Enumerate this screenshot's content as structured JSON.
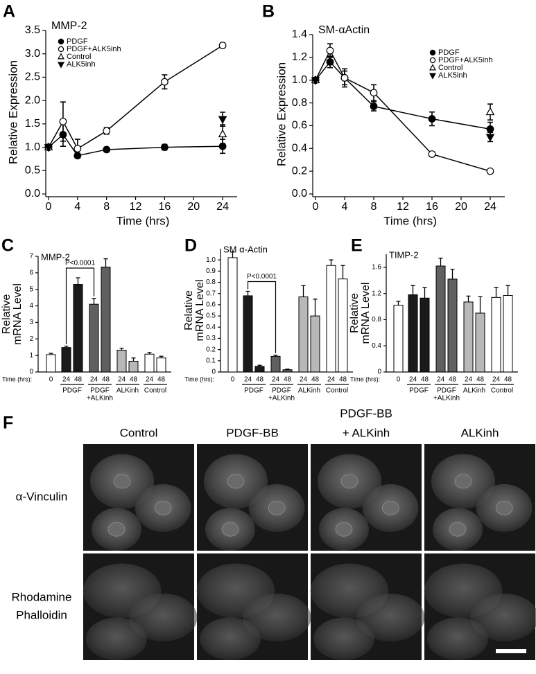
{
  "chart_data": [
    {
      "panel": "A",
      "type": "line",
      "title": "MMP-2",
      "x": [
        0,
        2,
        4,
        8,
        16,
        24
      ],
      "xlim": [
        0,
        26
      ],
      "xticks": [
        0,
        4,
        8,
        12,
        16,
        20,
        24
      ],
      "ylim": [
        0,
        3.5
      ],
      "yticks": [
        {
          "value": 0,
          "label": "0.0"
        },
        0.5,
        {
          "value": 1,
          "label": "1.0"
        },
        1.5,
        {
          "value": 2,
          "label": "2.0"
        },
        2.5,
        {
          "value": 3,
          "label": "3.0"
        },
        3.5
      ],
      "x_label": "Time (hrs)",
      "y_label": "Relative Expression",
      "legend": "upper left",
      "series": [
        {
          "name": "PDGF",
          "color": "#000000",
          "marker": "circle",
          "filled": true,
          "line": true,
          "values": [
            1.0,
            1.27,
            0.82,
            0.95,
            1.0,
            1.02
          ],
          "errors": [
            0.03,
            0.25,
            0.05,
            0.05,
            0.06,
            0.15
          ]
        },
        {
          "name": "PDGF+ALK5inh",
          "color": "#000000",
          "marker": "circle",
          "filled": false,
          "line": true,
          "values": [
            1.0,
            1.55,
            0.97,
            1.35,
            2.4,
            3.18
          ],
          "errors": [
            0.03,
            0.42,
            0.2,
            0.07,
            0.15,
            0.05
          ]
        },
        {
          "name": "Control",
          "color": "#000000",
          "marker": "triangle-up",
          "filled": false,
          "line": false,
          "values": [
            1.0,
            null,
            null,
            null,
            null,
            1.28
          ],
          "errors": [
            0.03,
            null,
            null,
            null,
            null,
            0.2
          ]
        },
        {
          "name": "ALK5inh",
          "color": "#000000",
          "marker": "triangle-down",
          "filled": true,
          "line": false,
          "values": [
            1.0,
            null,
            null,
            null,
            null,
            1.6
          ],
          "errors": [
            0.03,
            null,
            null,
            null,
            null,
            0.15
          ]
        }
      ]
    },
    {
      "panel": "B",
      "type": "line",
      "title": "SM-αActin",
      "x": [
        0,
        2,
        4,
        8,
        16,
        24
      ],
      "xlim": [
        0,
        26
      ],
      "xticks": [
        0,
        4,
        8,
        12,
        16,
        20,
        24
      ],
      "ylim": [
        0,
        1.4
      ],
      "yticks": [
        {
          "value": 0,
          "label": "0.0"
        },
        0.2,
        0.4,
        0.6,
        0.8,
        {
          "value": 1,
          "label": "1.0"
        },
        1.2,
        1.4
      ],
      "x_label": "Time (hrs)",
      "y_label": "Relative Expression",
      "legend": "upper right",
      "series": [
        {
          "name": "PDGF",
          "color": "#000000",
          "marker": "circle",
          "filled": true,
          "line": true,
          "values": [
            1.0,
            1.16,
            1.02,
            0.77,
            0.66,
            0.57
          ],
          "errors": [
            0.02,
            0.05,
            0.08,
            0.04,
            0.06,
            0.06
          ]
        },
        {
          "name": "PDGF+ALK5inh",
          "color": "#000000",
          "marker": "circle",
          "filled": false,
          "line": true,
          "values": [
            1.0,
            1.26,
            1.02,
            0.89,
            0.35,
            0.2
          ],
          "errors": [
            0.02,
            0.06,
            0.06,
            0.07,
            0.02,
            0.01
          ]
        },
        {
          "name": "Control",
          "color": "#000000",
          "marker": "triangle-up",
          "filled": false,
          "line": false,
          "values": [
            1.0,
            null,
            null,
            null,
            null,
            0.72
          ],
          "errors": [
            0.02,
            null,
            null,
            null,
            null,
            0.07
          ]
        },
        {
          "name": "ALK5inh",
          "color": "#000000",
          "marker": "triangle-down",
          "filled": true,
          "line": false,
          "values": [
            1.0,
            null,
            null,
            null,
            null,
            0.5
          ],
          "errors": [
            0.02,
            null,
            null,
            null,
            null,
            0.04
          ]
        }
      ]
    },
    {
      "panel": "C",
      "type": "bar",
      "title": "MMP-2",
      "x_label": "Time (hrs):",
      "categories": [
        "0",
        "24",
        "48",
        "24",
        "48",
        "24",
        "48",
        "24",
        "48"
      ],
      "groups": [
        "PDGF",
        [
          "PDGF",
          "+ALKinh"
        ],
        "ALKinh",
        "Control"
      ],
      "values": [
        1.05,
        1.48,
        5.3,
        4.1,
        6.35,
        1.32,
        0.65,
        1.08,
        0.85
      ],
      "errors": [
        0.08,
        0.08,
        0.4,
        0.35,
        0.5,
        0.12,
        0.2,
        0.1,
        0.1
      ],
      "colors": [
        "#ffffff",
        "#1a1a1a",
        "#1a1a1a",
        "#606060",
        "#606060",
        "#b8b8b8",
        "#b8b8b8",
        "#ffffff",
        "#ffffff"
      ],
      "ylim": [
        0,
        7
      ],
      "yticks": [
        0,
        1,
        2,
        3,
        4,
        5,
        6,
        7
      ],
      "y_label": [
        "Relative",
        "mRNA Level"
      ],
      "annotation": "P<0.0001"
    },
    {
      "panel": "D",
      "type": "bar",
      "title": "SM α-Actin",
      "x_label": "Time (hrs):",
      "categories": [
        "0",
        "24",
        "48",
        "24",
        "48",
        "24",
        "48",
        "24",
        "48"
      ],
      "groups": [
        "PDGF",
        [
          "PDGF",
          "+ALKinh"
        ],
        "ALKinh",
        "Control"
      ],
      "values": [
        1.02,
        0.68,
        0.05,
        0.14,
        0.02,
        0.67,
        0.5,
        0.95,
        0.83
      ],
      "errors": [
        0.05,
        0.04,
        0.01,
        0.01,
        0.005,
        0.1,
        0.15,
        0.05,
        0.12
      ],
      "colors": [
        "#ffffff",
        "#1a1a1a",
        "#1a1a1a",
        "#606060",
        "#606060",
        "#b8b8b8",
        "#b8b8b8",
        "#ffffff",
        "#ffffff"
      ],
      "ylim": [
        0,
        1.1
      ],
      "yticks": [
        0,
        0.1,
        0.2,
        0.3,
        0.4,
        0.5,
        0.6,
        0.7,
        0.8,
        0.9,
        {
          "value": 1,
          "label": "1.0"
        }
      ],
      "y_label": [
        "Relative",
        "mRNA Level"
      ],
      "annotation": "P<0.0001"
    },
    {
      "panel": "E",
      "type": "bar",
      "title": "TIMP-2",
      "x_label": "Time (hrs):",
      "categories": [
        "0",
        "24",
        "48",
        "24",
        "48",
        "24",
        "48",
        "24",
        "48"
      ],
      "groups": [
        "PDGF",
        [
          "PDGF",
          "+ALKinh"
        ],
        "ALKinh",
        "Control"
      ],
      "values": [
        1.02,
        1.18,
        1.13,
        1.62,
        1.42,
        1.07,
        0.9,
        1.14,
        1.17
      ],
      "errors": [
        0.06,
        0.14,
        0.16,
        0.12,
        0.15,
        0.09,
        0.25,
        0.15,
        0.15
      ],
      "colors": [
        "#ffffff",
        "#1a1a1a",
        "#1a1a1a",
        "#606060",
        "#606060",
        "#b8b8b8",
        "#b8b8b8",
        "#ffffff",
        "#ffffff"
      ],
      "ylim": [
        0,
        1.8
      ],
      "yticks": [
        0,
        0.4,
        0.8,
        1.2,
        1.6
      ],
      "y_label": [
        "Relative",
        "mRNA Level"
      ]
    }
  ],
  "image_panel": {
    "panel": "F",
    "columns": [
      "Control",
      "PDGF-BB",
      [
        "PDGF-BB",
        "+ ALKinh"
      ],
      "ALKinh"
    ],
    "rows": [
      "α-Vinculin",
      [
        "Rhodamine",
        "Phalloidin"
      ]
    ]
  }
}
